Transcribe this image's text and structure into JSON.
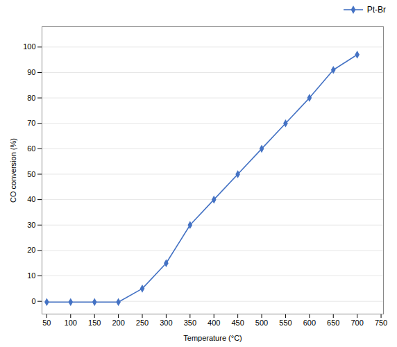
{
  "chart_data": {
    "type": "line",
    "xlabel": "Temperature (°C)",
    "ylabel": "CO conversion (%)",
    "x": [
      50,
      100,
      150,
      200,
      250,
      300,
      350,
      400,
      450,
      500,
      550,
      600,
      650,
      700
    ],
    "series": [
      {
        "name": "Pt-Br",
        "color": "#4472C4",
        "marker": "diamond",
        "values": [
          -0.3,
          -0.3,
          -0.3,
          -0.3,
          5,
          15,
          30,
          40,
          50,
          60,
          70,
          80,
          91,
          97
        ]
      }
    ],
    "xlim": [
      40,
      755
    ],
    "ylim": [
      -5,
      108
    ],
    "xticks": [
      50,
      100,
      150,
      200,
      250,
      300,
      350,
      400,
      450,
      500,
      550,
      600,
      650,
      700,
      750
    ],
    "yticks": [
      0,
      10,
      20,
      30,
      40,
      50,
      60,
      70,
      80,
      90,
      100
    ],
    "grid": true,
    "legend": "upper right"
  }
}
